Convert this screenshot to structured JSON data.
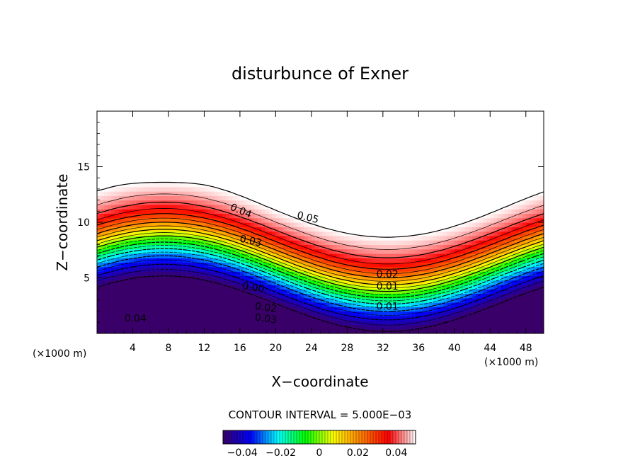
{
  "chart_data": {
    "type": "heatmap",
    "title": "disturbunce of Exner",
    "xlabel": "X−coordinate",
    "ylabel": "Z−coordinate",
    "x_unit": "(×1000 m)",
    "y_unit": "(×1000 m)",
    "xlim": [
      0,
      50
    ],
    "ylim": [
      0,
      20
    ],
    "x_ticks": [
      4,
      8,
      12,
      16,
      20,
      24,
      28,
      32,
      36,
      40,
      44,
      48
    ],
    "y_ticks": [
      5,
      10,
      15
    ],
    "contour_interval_text": "CONTOUR INTERVAL = 5.000E−03",
    "contour_interval": 0.005,
    "value_range": [
      -0.05,
      0.05
    ],
    "colormap": [
      "#3a006a",
      "#0000ff",
      "#00ffff",
      "#00ff00",
      "#ffff00",
      "#ff8000",
      "#ff0000",
      "#ffffff"
    ],
    "negative_contours": "dashed",
    "contour_labels": [
      {
        "text": "0.05",
        "x": 23.6,
        "y": 10.4,
        "angle": 14
      },
      {
        "text": "0.04",
        "x": 16.1,
        "y": 11.0,
        "angle": 23
      },
      {
        "text": "0.03",
        "x": 17.2,
        "y": 8.3,
        "angle": 12
      },
      {
        "text": "0.02",
        "x": 32.5,
        "y": 5.3,
        "angle": 0
      },
      {
        "text": "0.01",
        "x": 32.5,
        "y": 4.2,
        "angle": 0
      },
      {
        "text": "0.00",
        "x": 17.5,
        "y": 4.1,
        "angle": 8
      },
      {
        "text": "0.01",
        "x": 32.5,
        "y": 2.4,
        "angle": 0
      },
      {
        "text": "0.02",
        "x": 18.9,
        "y": 2.3,
        "angle": 8
      },
      {
        "text": "0.03",
        "x": 18.9,
        "y": 1.3,
        "angle": 8
      },
      {
        "text": "0.04",
        "x": 4.3,
        "y": 1.3,
        "angle": 0
      }
    ],
    "colorbar": {
      "ticks": [
        -0.04,
        -0.02,
        0,
        0.02,
        0.04
      ],
      "tick_labels": [
        "−0.04",
        "−0.02",
        "0",
        "0.02",
        "0.04"
      ],
      "range": [
        -0.05,
        0.05
      ]
    }
  }
}
